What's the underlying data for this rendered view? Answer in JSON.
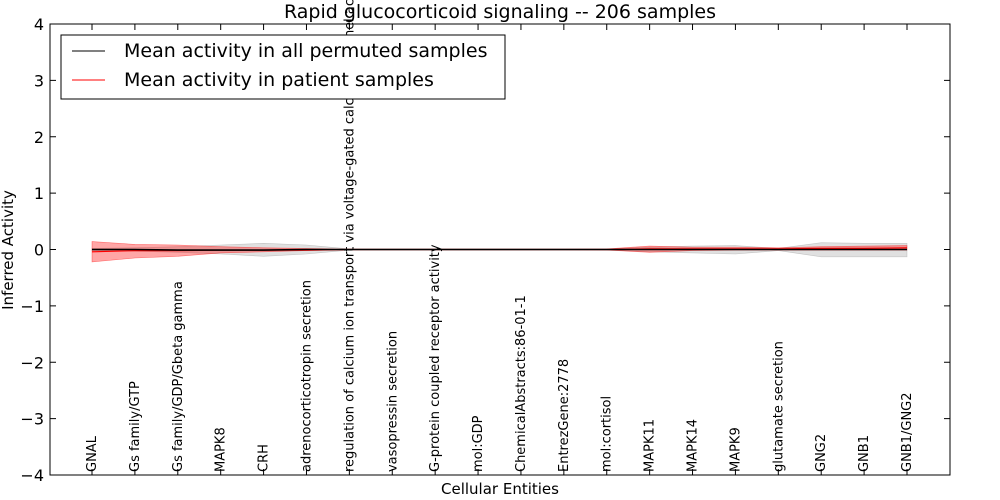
{
  "chart_data": {
    "type": "line",
    "title": "Rapid glucocorticoid signaling -- 206 samples",
    "xlabel": "Cellular Entities",
    "ylabel": "Inferred Activity",
    "ylim": [
      -4,
      4
    ],
    "yticks": [
      "4",
      "3",
      "2",
      "1",
      "0",
      "−1",
      "−2",
      "−3",
      "−4"
    ],
    "ytick_values": [
      4,
      3,
      2,
      1,
      0,
      -1,
      -2,
      -3,
      -4
    ],
    "legend_position": "top-left",
    "categories": [
      "GNAL",
      "Gs family/GTP",
      "Gs family/GDP/Gbeta gamma",
      "MAPK8",
      "CRH",
      "adrenocorticotropin secretion",
      "regulation of calcium ion transport via voltage-gated calcium channel activity",
      "vasopressin secretion",
      "G-protein coupled receptor activity",
      "mol:GDP",
      "ChemicalAbstracts:86-01-1",
      "EntrezGene:2778",
      "mol:cortisol",
      "MAPK11",
      "MAPK14",
      "MAPK9",
      "glutamate secretion",
      "GNG2",
      "GNB1",
      "GNB1/GNG2"
    ],
    "series": [
      {
        "name": "Mean activity in all permuted samples",
        "color": "#000000",
        "band_color": "#bbbbbb",
        "values": [
          0,
          0,
          -0.01,
          -0.01,
          -0.01,
          0,
          0,
          0,
          0,
          0,
          0,
          0,
          0,
          0,
          0,
          0,
          0,
          0,
          0,
          0
        ],
        "lower": [
          -0.02,
          -0.03,
          -0.05,
          -0.08,
          -0.12,
          -0.08,
          -0.01,
          -0.01,
          -0.01,
          -0.01,
          -0.01,
          -0.01,
          -0.01,
          -0.04,
          -0.06,
          -0.08,
          -0.02,
          -0.13,
          -0.13,
          -0.13
        ],
        "upper": [
          0.02,
          0.03,
          0.05,
          0.08,
          0.11,
          0.08,
          0.01,
          0.01,
          0.01,
          0.01,
          0.01,
          0.01,
          0.01,
          0.04,
          0.06,
          0.07,
          0.02,
          0.12,
          0.11,
          0.11
        ]
      },
      {
        "name": "Mean activity in patient samples",
        "color": "#ff0000",
        "band_color": "#ff0000",
        "values": [
          -0.04,
          -0.02,
          -0.02,
          -0.01,
          -0.01,
          -0.01,
          0,
          0,
          0,
          0,
          0,
          0,
          0,
          0.01,
          0.01,
          0.01,
          0.01,
          0.02,
          0.02,
          0.03
        ],
        "lower": [
          -0.22,
          -0.15,
          -0.12,
          -0.06,
          -0.04,
          -0.02,
          -0.005,
          -0.005,
          -0.005,
          -0.005,
          -0.005,
          -0.005,
          -0.01,
          -0.05,
          -0.02,
          -0.01,
          -0.01,
          -0.01,
          -0.01,
          -0.01
        ],
        "upper": [
          0.14,
          0.09,
          0.08,
          0.05,
          0.03,
          0.02,
          0.005,
          0.005,
          0.005,
          0.005,
          0.005,
          0.005,
          0.01,
          0.06,
          0.04,
          0.04,
          0.03,
          0.05,
          0.06,
          0.07
        ]
      }
    ]
  }
}
